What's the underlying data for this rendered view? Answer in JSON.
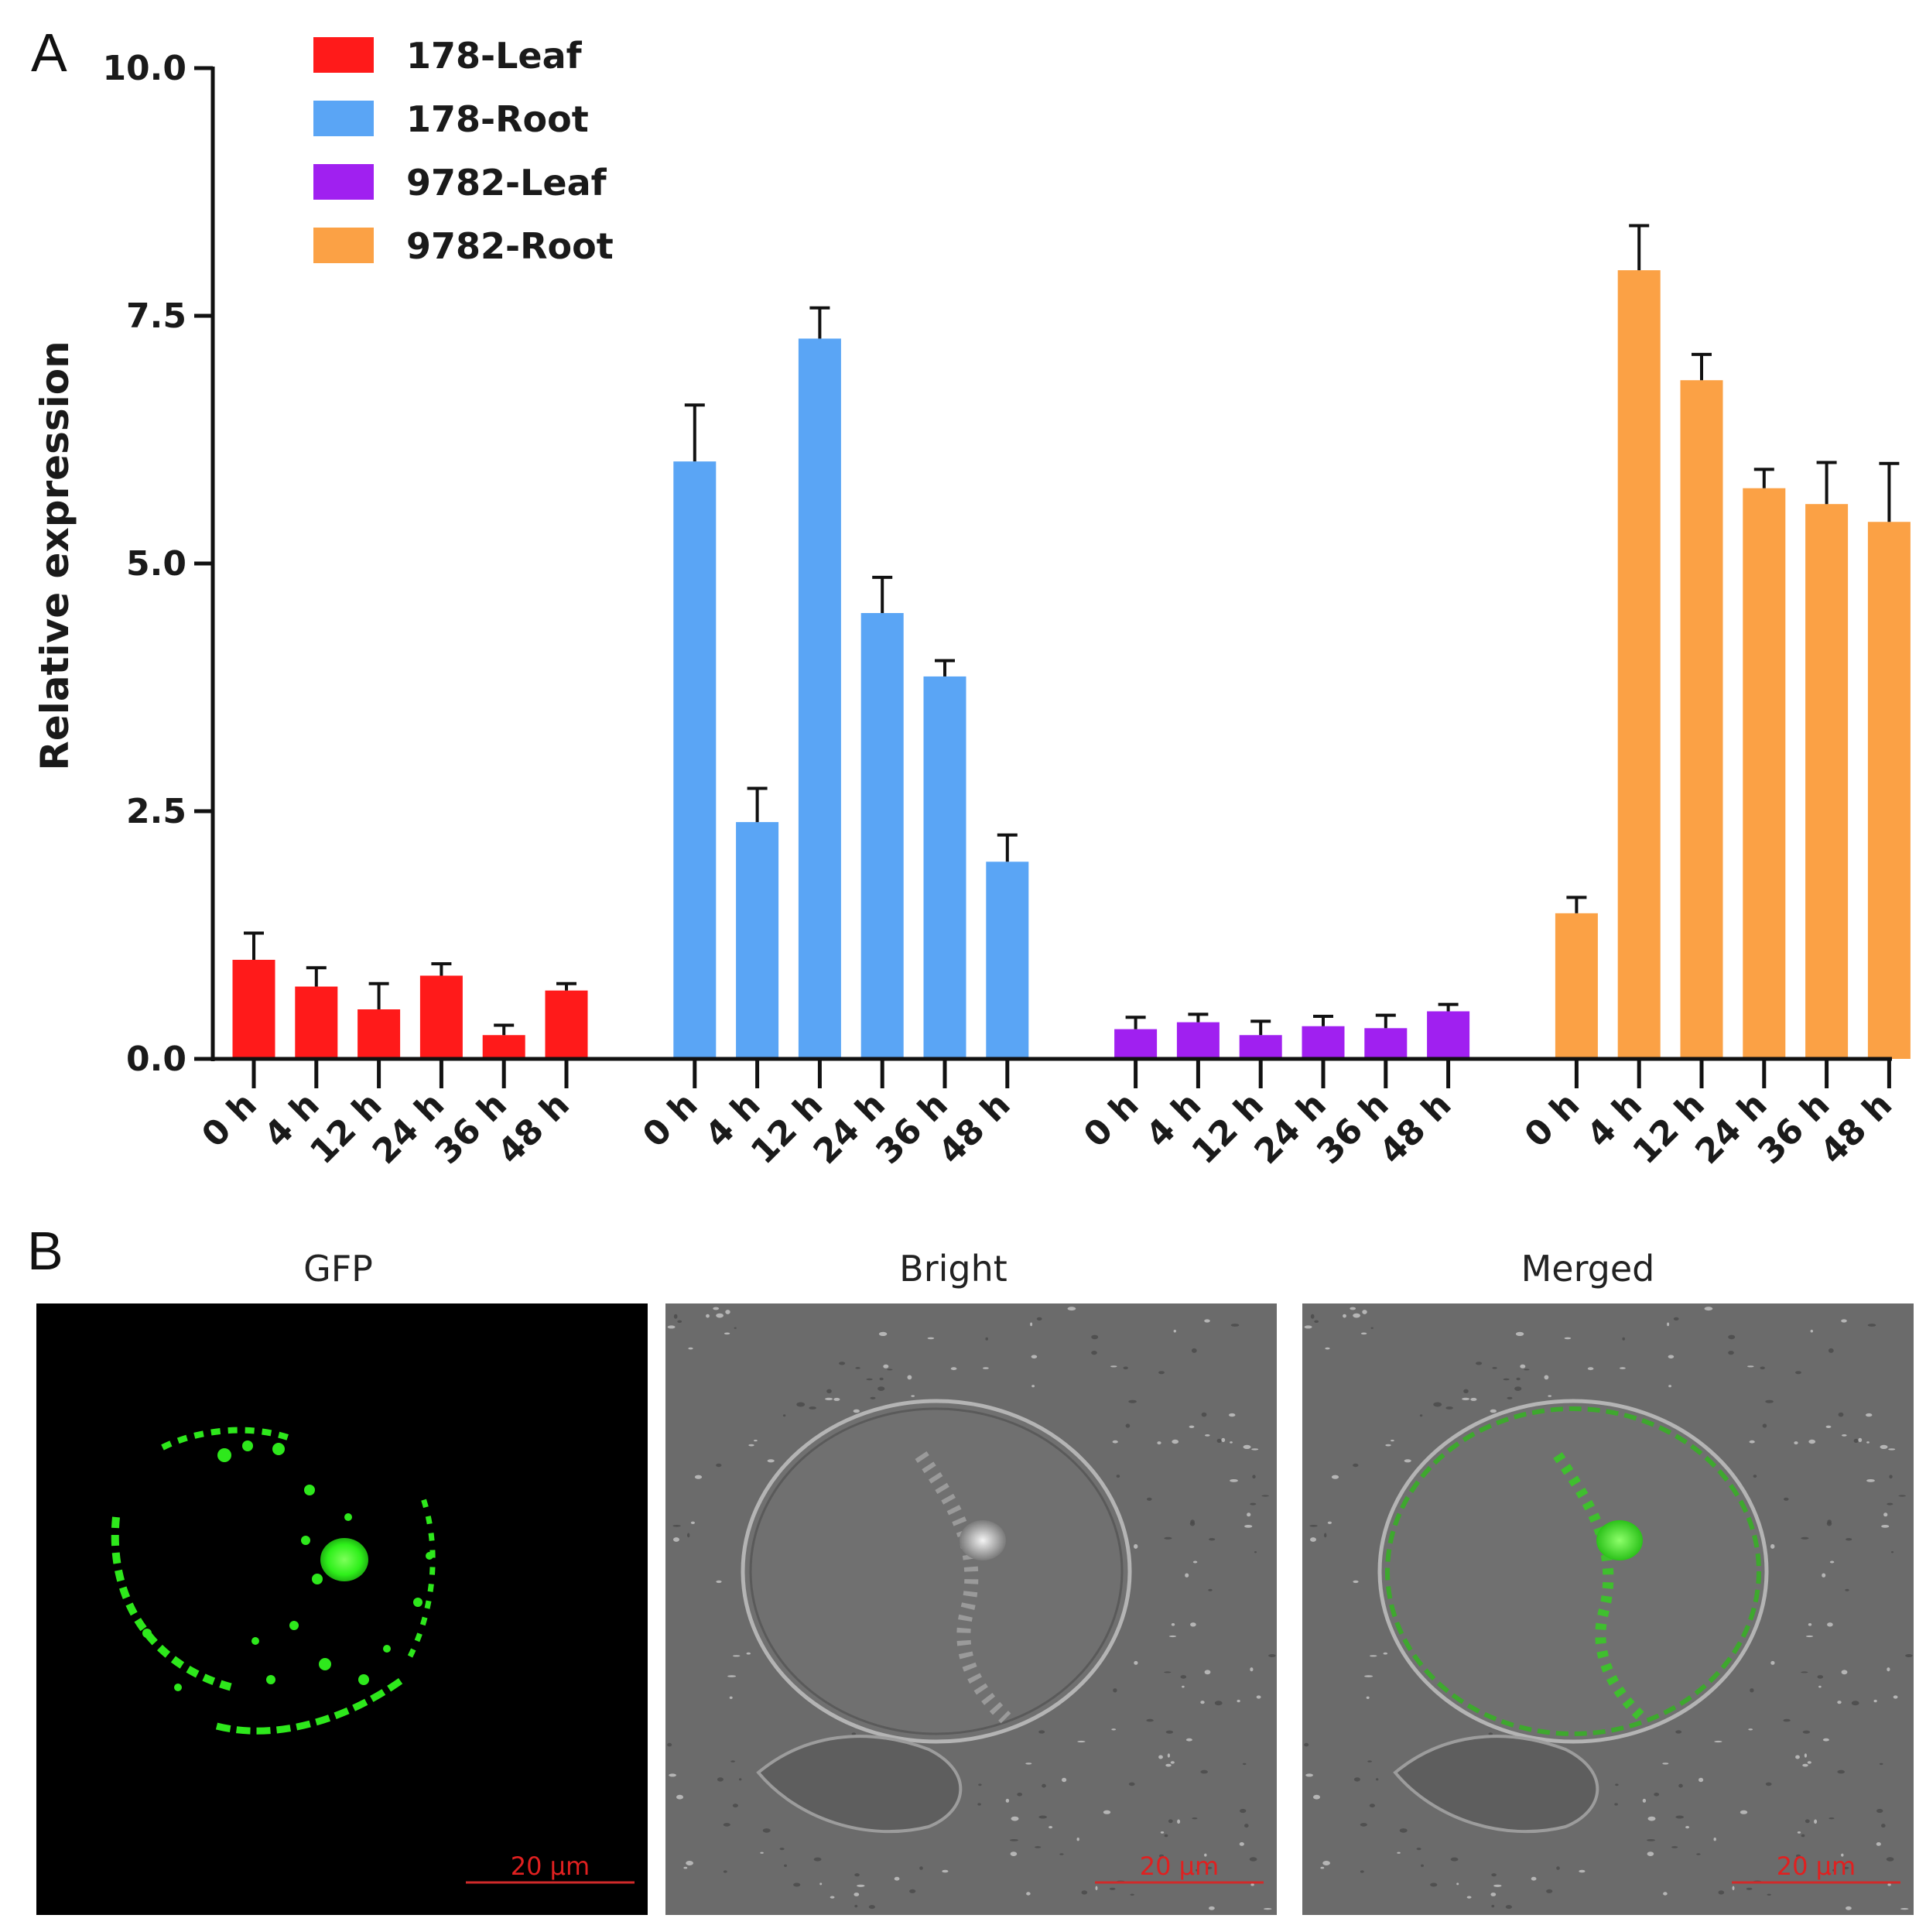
{
  "panel_a": {
    "letter": "A"
  },
  "panel_b": {
    "letter": "B",
    "images": [
      {
        "title": "GFP",
        "scale_label": "20 μm"
      },
      {
        "title": "Bright",
        "scale_label": "20 μm"
      },
      {
        "title": "Merged",
        "scale_label": "20 μm"
      }
    ]
  },
  "chart_data": {
    "type": "bar",
    "title": "",
    "xlabel": "",
    "ylabel": "Relative expression",
    "ylim": [
      0,
      10
    ],
    "yticks": [
      "0.0",
      "2.5",
      "5.0",
      "7.5",
      "10.0"
    ],
    "grid": false,
    "legend_position": "top-left",
    "categories": [
      "0 h",
      "4 h",
      "12 h",
      "24 h",
      "36 h",
      "48 h"
    ],
    "series": [
      {
        "name": "178-Leaf",
        "color": "#ff1a1a",
        "values": [
          1.0,
          0.73,
          0.5,
          0.84,
          0.24,
          0.69
        ],
        "errors": [
          0.27,
          0.19,
          0.26,
          0.12,
          0.1,
          0.07
        ]
      },
      {
        "name": "178-Root",
        "color": "#5aa5f5",
        "values": [
          6.03,
          2.39,
          7.27,
          4.5,
          3.86,
          1.99
        ],
        "errors": [
          0.57,
          0.34,
          0.31,
          0.36,
          0.16,
          0.27
        ]
      },
      {
        "name": "9782-Leaf",
        "color": "#a020f0",
        "values": [
          0.3,
          0.37,
          0.24,
          0.33,
          0.31,
          0.48
        ],
        "errors": [
          0.12,
          0.08,
          0.14,
          0.1,
          0.13,
          0.07
        ]
      },
      {
        "name": "9782-Root",
        "color": "#fba145",
        "values": [
          1.47,
          7.96,
          6.85,
          5.76,
          5.6,
          5.42
        ],
        "errors": [
          0.16,
          0.45,
          0.26,
          0.19,
          0.42,
          0.59
        ]
      }
    ]
  }
}
